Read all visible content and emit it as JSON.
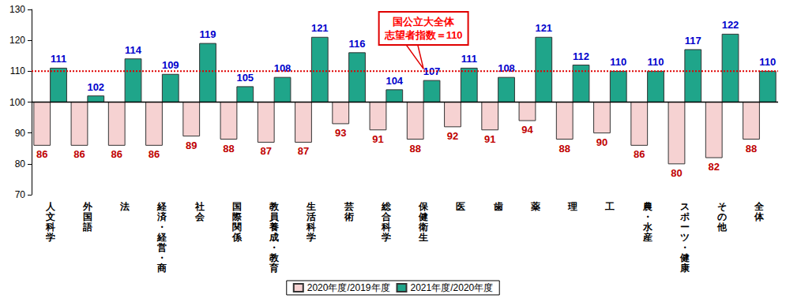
{
  "chart_data": {
    "type": "bar",
    "categories": [
      "人文科学",
      "外国語",
      "法",
      "経済・経営・商",
      "社会",
      "国際関係",
      "教員養成・教育",
      "生活科学",
      "芸術",
      "総合科学",
      "保健衛生",
      "医",
      "歯",
      "薬",
      "理",
      "工",
      "農・水産",
      "スポーツ・健康",
      "その他",
      "全体"
    ],
    "series": [
      {
        "name": "2020年度/2019年度",
        "color": "#f6d2d2",
        "values": [
          86,
          86,
          86,
          86,
          89,
          88,
          87,
          87,
          93,
          91,
          88,
          92,
          91,
          94,
          88,
          90,
          86,
          80,
          82,
          88
        ]
      },
      {
        "name": "2021年度/2020年度",
        "color": "#1fa58a",
        "values": [
          111,
          102,
          114,
          109,
          119,
          105,
          108,
          121,
          116,
          104,
          107,
          111,
          108,
          121,
          112,
          110,
          110,
          117,
          122,
          110
        ]
      }
    ],
    "ylim": [
      70,
      130
    ],
    "yticks": [
      70,
      80,
      90,
      100,
      110,
      120,
      130
    ],
    "grid": false,
    "legend": "bottom",
    "data_labels": true,
    "baseline": 100,
    "reference_line": {
      "value": 110,
      "label": "国公立大全体\n志望者指数＝110"
    }
  }
}
